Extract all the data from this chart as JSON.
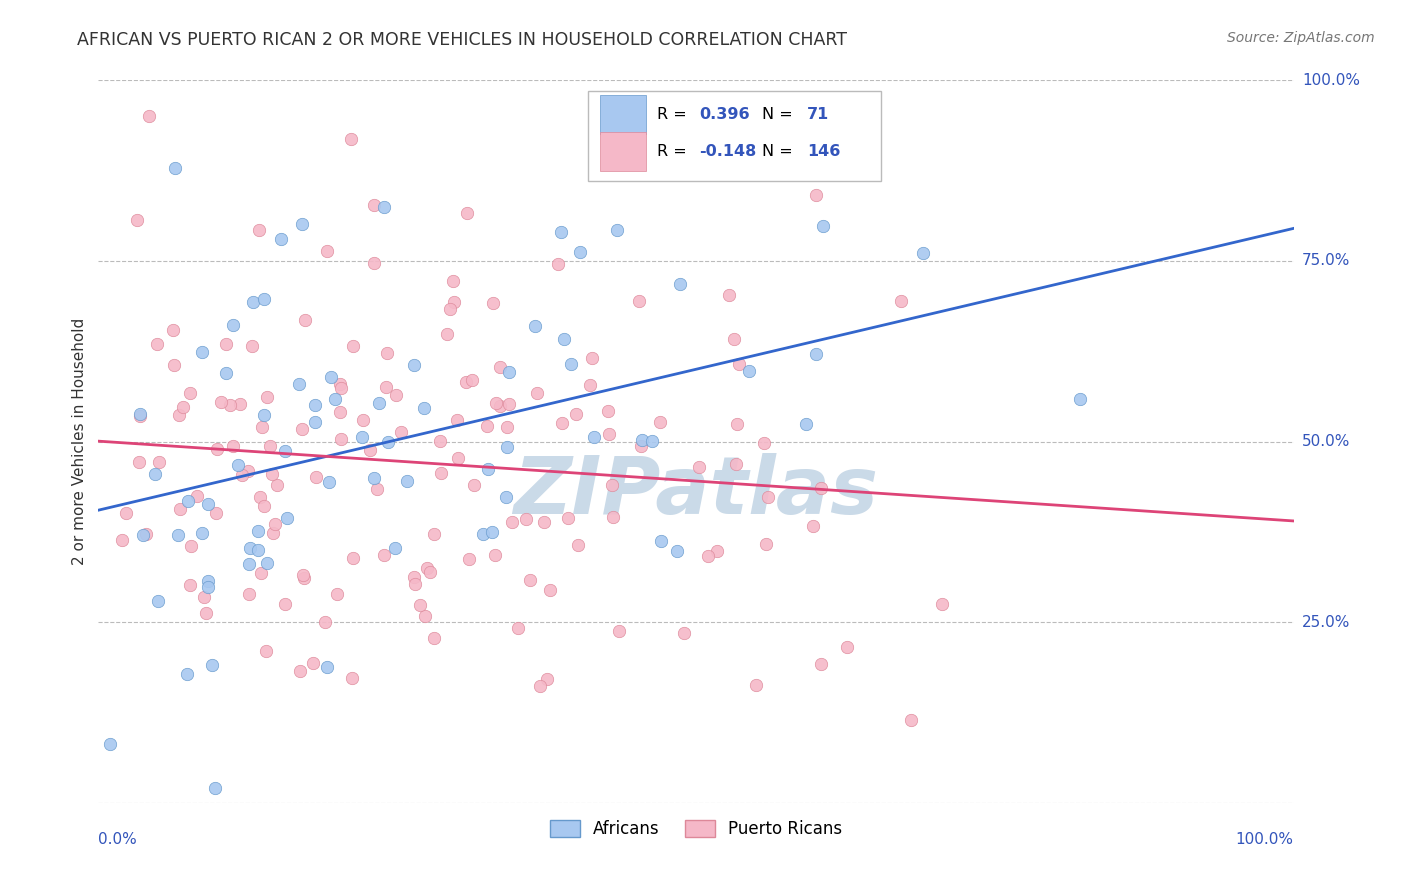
{
  "title": "AFRICAN VS PUERTO RICAN 2 OR MORE VEHICLES IN HOUSEHOLD CORRELATION CHART",
  "source": "Source: ZipAtlas.com",
  "ylabel": "2 or more Vehicles in Household",
  "africans_R": 0.396,
  "africans_N": 71,
  "puertoricans_R": -0.148,
  "puertoricans_N": 146,
  "xlim": [
    0.0,
    1.0
  ],
  "ylim": [
    0.0,
    1.0
  ],
  "yticks": [
    0.0,
    0.25,
    0.5,
    0.75,
    1.0
  ],
  "ytick_labels": [
    "",
    "25.0%",
    "50.0%",
    "75.0%",
    "100.0%"
  ],
  "africans_color": "#A8C8F0",
  "africans_edge_color": "#6699CC",
  "puertoricans_color": "#F5B8C8",
  "puertoricans_edge_color": "#DD8899",
  "africans_line_color": "#3366CC",
  "puertoricans_line_color": "#DD4477",
  "legend_R_N_color": "#3355BB",
  "watermark_color": "#CADAE8",
  "background_color": "#FFFFFF",
  "grid_color": "#BBBBBB",
  "title_color": "#333333",
  "source_color": "#777777",
  "ytick_color": "#3355BB",
  "xtick_color": "#3355BB",
  "marker_size": 80,
  "seed": 12345
}
